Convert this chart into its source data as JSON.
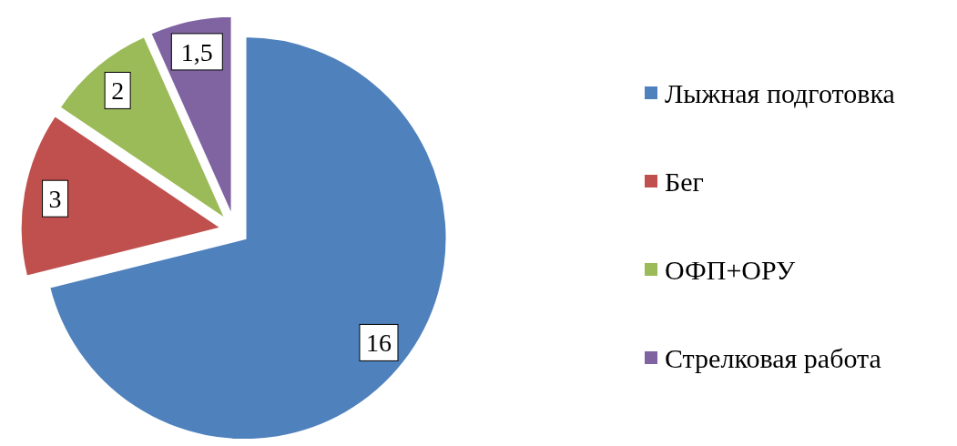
{
  "chart_data": {
    "type": "pie",
    "categories": [
      "Лыжная подготовка",
      "Бег",
      "ОФП+ОРУ",
      "Стрелковая работа"
    ],
    "values": [
      16,
      3,
      2,
      1.5
    ],
    "colors": [
      "#4f81bd",
      "#c0504d",
      "#9bbb59",
      "#8064a2"
    ],
    "value_labels": [
      "16",
      "3",
      "2",
      "1,5"
    ],
    "legend": "right"
  }
}
